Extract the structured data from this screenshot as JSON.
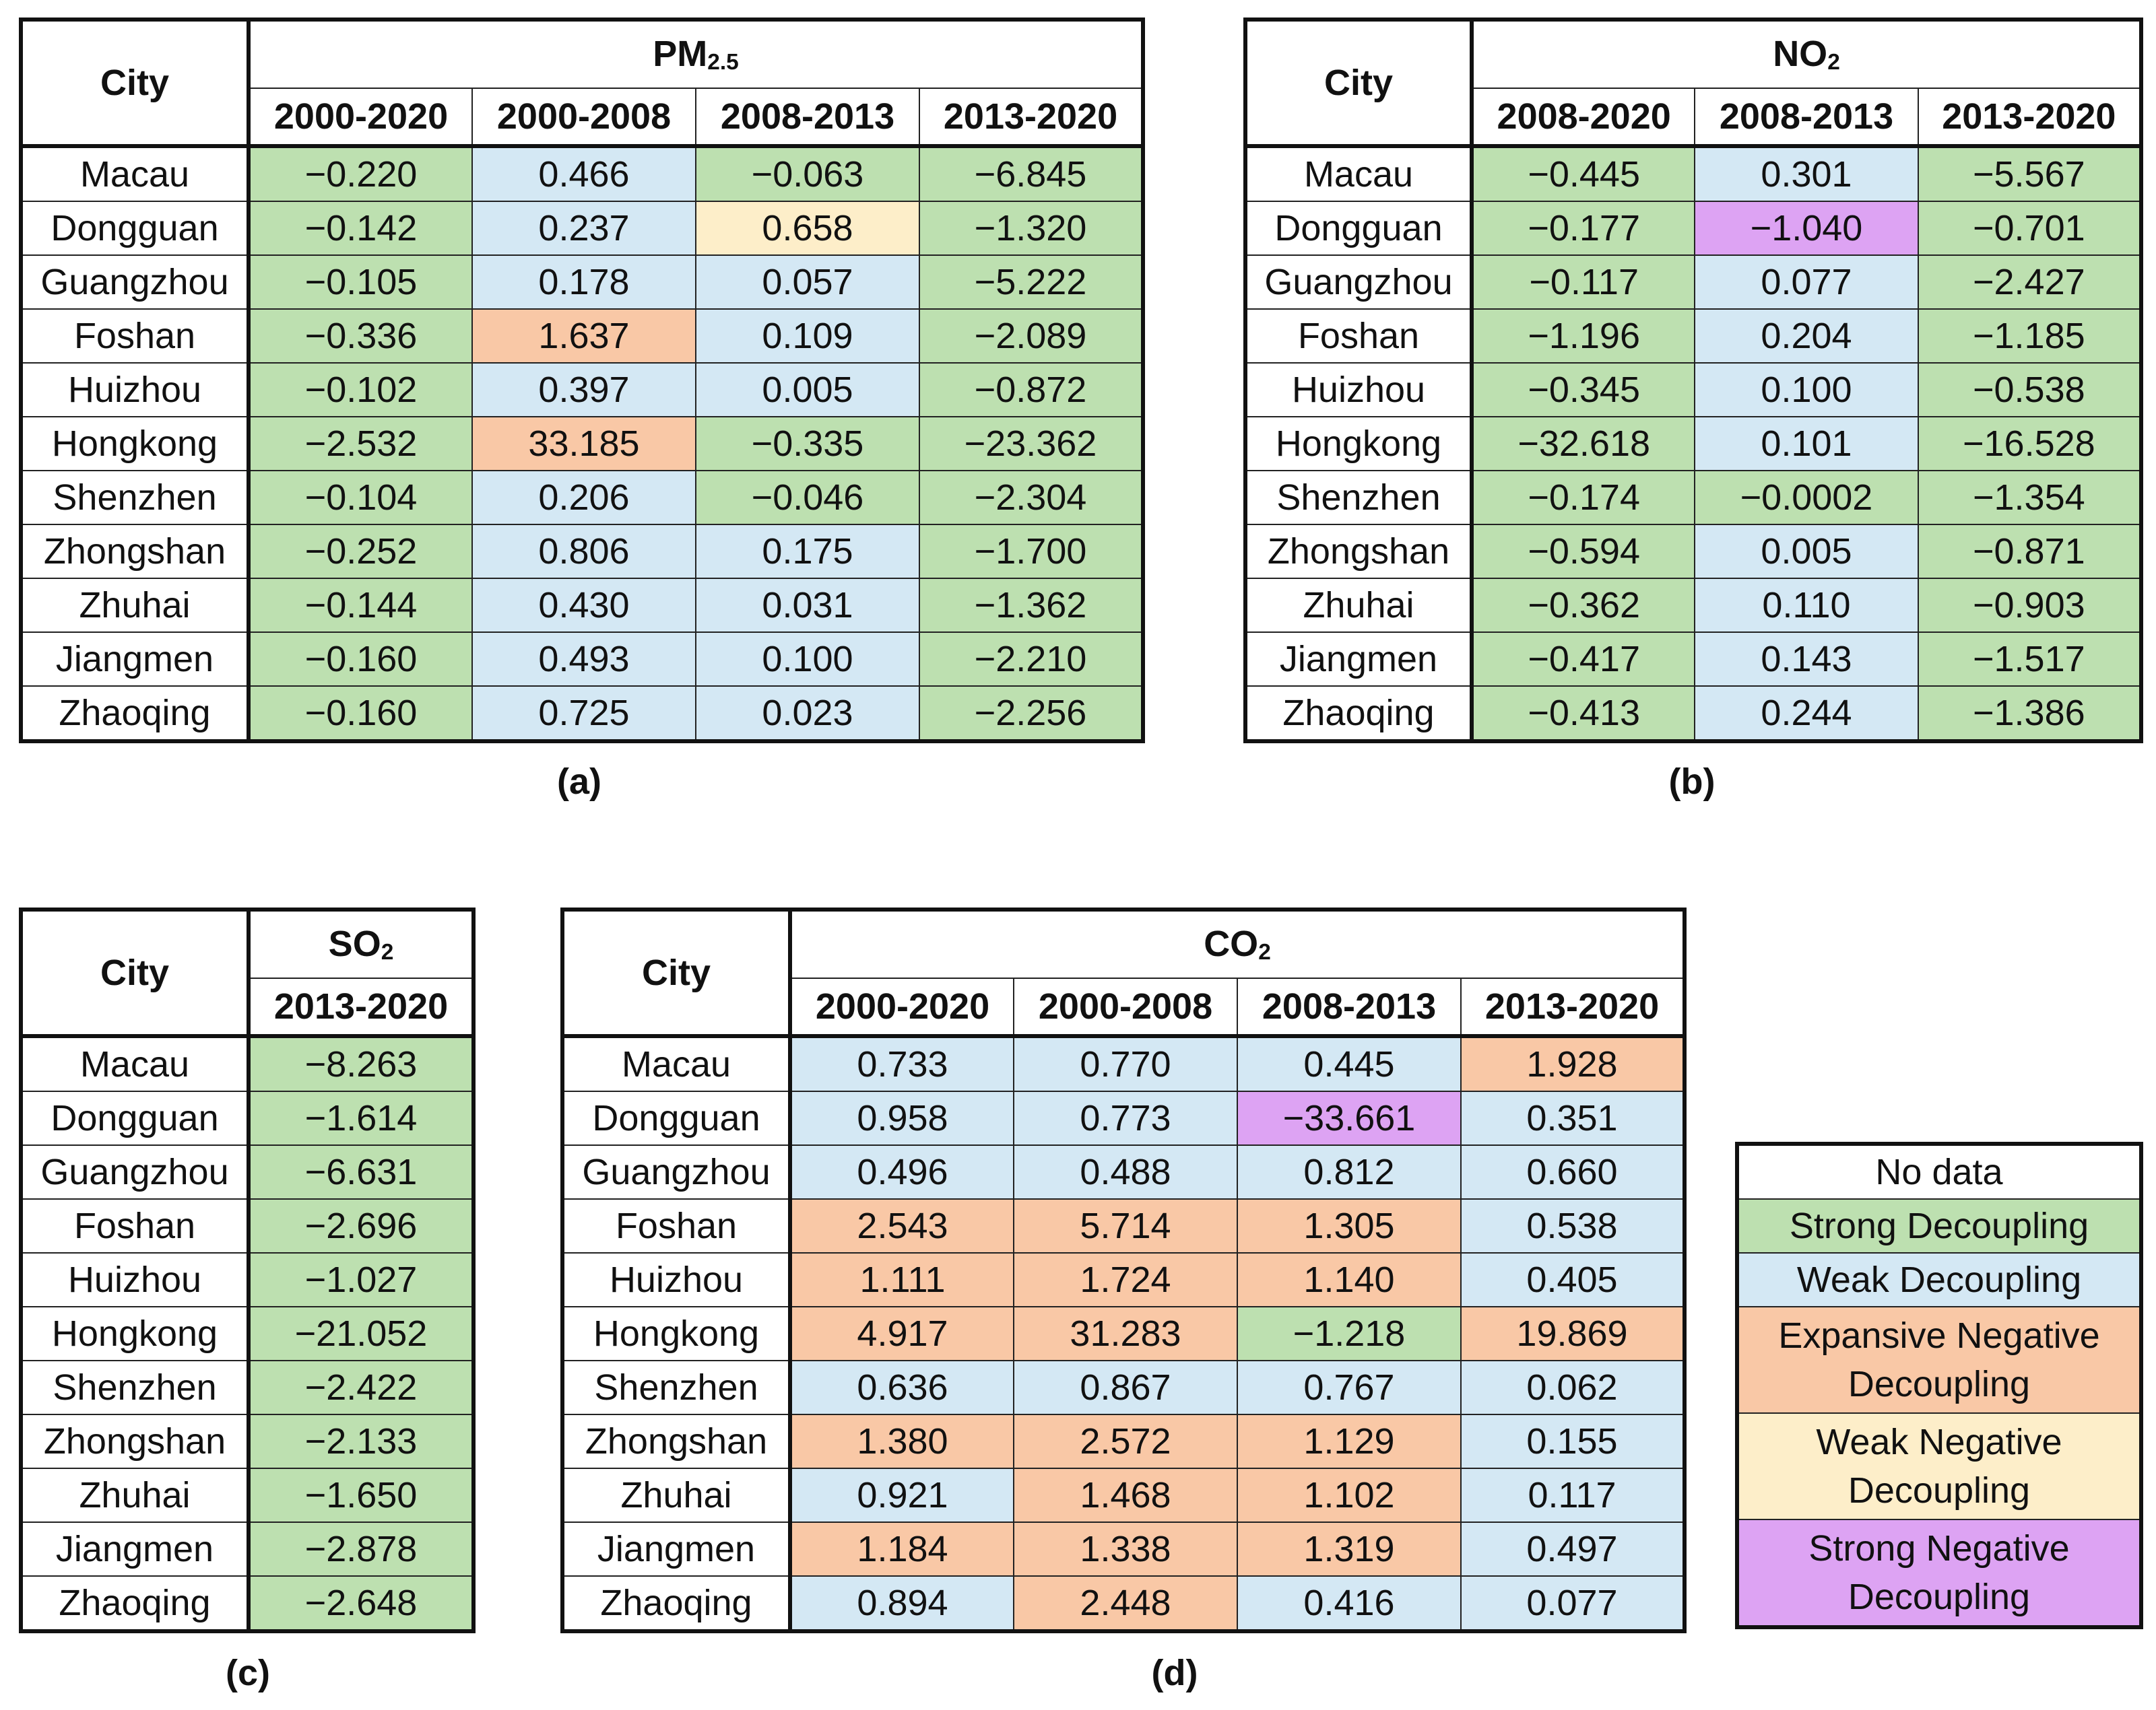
{
  "tables": {
    "a": {
      "caption": "(a)",
      "city_header": "City",
      "pollutant": {
        "base": "PM",
        "sub": "2.5"
      },
      "periods": [
        "2000-2020",
        "2000-2008",
        "2008-2013",
        "2013-2020"
      ],
      "rows": [
        {
          "city": "Macau",
          "cells": [
            {
              "value": "−0.220",
              "class": "SD"
            },
            {
              "value": "0.466",
              "class": "WD"
            },
            {
              "value": "−0.063",
              "class": "SD"
            },
            {
              "value": "−6.845",
              "class": "SD"
            }
          ]
        },
        {
          "city": "Dongguan",
          "cells": [
            {
              "value": "−0.142",
              "class": "SD"
            },
            {
              "value": "0.237",
              "class": "WD"
            },
            {
              "value": "0.658",
              "class": "WND"
            },
            {
              "value": "−1.320",
              "class": "SD"
            }
          ]
        },
        {
          "city": "Guangzhou",
          "cells": [
            {
              "value": "−0.105",
              "class": "SD"
            },
            {
              "value": "0.178",
              "class": "WD"
            },
            {
              "value": "0.057",
              "class": "WD"
            },
            {
              "value": "−5.222",
              "class": "SD"
            }
          ]
        },
        {
          "city": "Foshan",
          "cells": [
            {
              "value": "−0.336",
              "class": "SD"
            },
            {
              "value": "1.637",
              "class": "END"
            },
            {
              "value": "0.109",
              "class": "WD"
            },
            {
              "value": "−2.089",
              "class": "SD"
            }
          ]
        },
        {
          "city": "Huizhou",
          "cells": [
            {
              "value": "−0.102",
              "class": "SD"
            },
            {
              "value": "0.397",
              "class": "WD"
            },
            {
              "value": "0.005",
              "class": "WD"
            },
            {
              "value": "−0.872",
              "class": "SD"
            }
          ]
        },
        {
          "city": "Hongkong",
          "cells": [
            {
              "value": "−2.532",
              "class": "SD"
            },
            {
              "value": "33.185",
              "class": "END"
            },
            {
              "value": "−0.335",
              "class": "SD"
            },
            {
              "value": "−23.362",
              "class": "SD"
            }
          ]
        },
        {
          "city": "Shenzhen",
          "cells": [
            {
              "value": "−0.104",
              "class": "SD"
            },
            {
              "value": "0.206",
              "class": "WD"
            },
            {
              "value": "−0.046",
              "class": "SD"
            },
            {
              "value": "−2.304",
              "class": "SD"
            }
          ]
        },
        {
          "city": "Zhongshan",
          "cells": [
            {
              "value": "−0.252",
              "class": "SD"
            },
            {
              "value": "0.806",
              "class": "WD"
            },
            {
              "value": "0.175",
              "class": "WD"
            },
            {
              "value": "−1.700",
              "class": "SD"
            }
          ]
        },
        {
          "city": "Zhuhai",
          "cells": [
            {
              "value": "−0.144",
              "class": "SD"
            },
            {
              "value": "0.430",
              "class": "WD"
            },
            {
              "value": "0.031",
              "class": "WD"
            },
            {
              "value": "−1.362",
              "class": "SD"
            }
          ]
        },
        {
          "city": "Jiangmen",
          "cells": [
            {
              "value": "−0.160",
              "class": "SD"
            },
            {
              "value": "0.493",
              "class": "WD"
            },
            {
              "value": "0.100",
              "class": "WD"
            },
            {
              "value": "−2.210",
              "class": "SD"
            }
          ]
        },
        {
          "city": "Zhaoqing",
          "cells": [
            {
              "value": "−0.160",
              "class": "SD"
            },
            {
              "value": "0.725",
              "class": "WD"
            },
            {
              "value": "0.023",
              "class": "WD"
            },
            {
              "value": "−2.256",
              "class": "SD"
            }
          ]
        }
      ]
    },
    "b": {
      "caption": "(b)",
      "city_header": "City",
      "pollutant": {
        "base": "NO",
        "sub": "2"
      },
      "periods": [
        "2008-2020",
        "2008-2013",
        "2013-2020"
      ],
      "rows": [
        {
          "city": "Macau",
          "cells": [
            {
              "value": "−0.445",
              "class": "SD"
            },
            {
              "value": "0.301",
              "class": "WD"
            },
            {
              "value": "−5.567",
              "class": "SD"
            }
          ]
        },
        {
          "city": "Dongguan",
          "cells": [
            {
              "value": "−0.177",
              "class": "SD"
            },
            {
              "value": "−1.040",
              "class": "SND"
            },
            {
              "value": "−0.701",
              "class": "SD"
            }
          ]
        },
        {
          "city": "Guangzhou",
          "cells": [
            {
              "value": "−0.117",
              "class": "SD"
            },
            {
              "value": "0.077",
              "class": "WD"
            },
            {
              "value": "−2.427",
              "class": "SD"
            }
          ]
        },
        {
          "city": "Foshan",
          "cells": [
            {
              "value": "−1.196",
              "class": "SD"
            },
            {
              "value": "0.204",
              "class": "WD"
            },
            {
              "value": "−1.185",
              "class": "SD"
            }
          ]
        },
        {
          "city": "Huizhou",
          "cells": [
            {
              "value": "−0.345",
              "class": "SD"
            },
            {
              "value": "0.100",
              "class": "WD"
            },
            {
              "value": "−0.538",
              "class": "SD"
            }
          ]
        },
        {
          "city": "Hongkong",
          "cells": [
            {
              "value": "−32.618",
              "class": "SD"
            },
            {
              "value": "0.101",
              "class": "WD"
            },
            {
              "value": "−16.528",
              "class": "SD"
            }
          ]
        },
        {
          "city": "Shenzhen",
          "cells": [
            {
              "value": "−0.174",
              "class": "SD"
            },
            {
              "value": "−0.0002",
              "class": "SD"
            },
            {
              "value": "−1.354",
              "class": "SD"
            }
          ]
        },
        {
          "city": "Zhongshan",
          "cells": [
            {
              "value": "−0.594",
              "class": "SD"
            },
            {
              "value": "0.005",
              "class": "WD"
            },
            {
              "value": "−0.871",
              "class": "SD"
            }
          ]
        },
        {
          "city": "Zhuhai",
          "cells": [
            {
              "value": "−0.362",
              "class": "SD"
            },
            {
              "value": "0.110",
              "class": "WD"
            },
            {
              "value": "−0.903",
              "class": "SD"
            }
          ]
        },
        {
          "city": "Jiangmen",
          "cells": [
            {
              "value": "−0.417",
              "class": "SD"
            },
            {
              "value": "0.143",
              "class": "WD"
            },
            {
              "value": "−1.517",
              "class": "SD"
            }
          ]
        },
        {
          "city": "Zhaoqing",
          "cells": [
            {
              "value": "−0.413",
              "class": "SD"
            },
            {
              "value": "0.244",
              "class": "WD"
            },
            {
              "value": "−1.386",
              "class": "SD"
            }
          ]
        }
      ]
    },
    "c": {
      "caption": "(c)",
      "city_header": "City",
      "pollutant": {
        "base": "SO",
        "sub": "2"
      },
      "periods": [
        "2013-2020"
      ],
      "rows": [
        {
          "city": "Macau",
          "cells": [
            {
              "value": "−8.263",
              "class": "SD"
            }
          ]
        },
        {
          "city": "Dongguan",
          "cells": [
            {
              "value": "−1.614",
              "class": "SD"
            }
          ]
        },
        {
          "city": "Guangzhou",
          "cells": [
            {
              "value": "−6.631",
              "class": "SD"
            }
          ]
        },
        {
          "city": "Foshan",
          "cells": [
            {
              "value": "−2.696",
              "class": "SD"
            }
          ]
        },
        {
          "city": "Huizhou",
          "cells": [
            {
              "value": "−1.027",
              "class": "SD"
            }
          ]
        },
        {
          "city": "Hongkong",
          "cells": [
            {
              "value": "−21.052",
              "class": "SD"
            }
          ]
        },
        {
          "city": "Shenzhen",
          "cells": [
            {
              "value": "−2.422",
              "class": "SD"
            }
          ]
        },
        {
          "city": "Zhongshan",
          "cells": [
            {
              "value": "−2.133",
              "class": "SD"
            }
          ]
        },
        {
          "city": "Zhuhai",
          "cells": [
            {
              "value": "−1.650",
              "class": "SD"
            }
          ]
        },
        {
          "city": "Jiangmen",
          "cells": [
            {
              "value": "−2.878",
              "class": "SD"
            }
          ]
        },
        {
          "city": "Zhaoqing",
          "cells": [
            {
              "value": "−2.648",
              "class": "SD"
            }
          ]
        }
      ]
    },
    "d": {
      "caption": "(d)",
      "city_header": "City",
      "pollutant": {
        "base": "CO",
        "sub": "2"
      },
      "periods": [
        "2000-2020",
        "2000-2008",
        "2008-2013",
        "2013-2020"
      ],
      "rows": [
        {
          "city": "Macau",
          "cells": [
            {
              "value": "0.733",
              "class": "WD"
            },
            {
              "value": "0.770",
              "class": "WD"
            },
            {
              "value": "0.445",
              "class": "WD"
            },
            {
              "value": "1.928",
              "class": "END"
            }
          ]
        },
        {
          "city": "Dongguan",
          "cells": [
            {
              "value": "0.958",
              "class": "WD"
            },
            {
              "value": "0.773",
              "class": "WD"
            },
            {
              "value": "−33.661",
              "class": "SND"
            },
            {
              "value": "0.351",
              "class": "WD"
            }
          ]
        },
        {
          "city": "Guangzhou",
          "cells": [
            {
              "value": "0.496",
              "class": "WD"
            },
            {
              "value": "0.488",
              "class": "WD"
            },
            {
              "value": "0.812",
              "class": "WD"
            },
            {
              "value": "0.660",
              "class": "WD"
            }
          ]
        },
        {
          "city": "Foshan",
          "cells": [
            {
              "value": "2.543",
              "class": "END"
            },
            {
              "value": "5.714",
              "class": "END"
            },
            {
              "value": "1.305",
              "class": "END"
            },
            {
              "value": "0.538",
              "class": "WD"
            }
          ]
        },
        {
          "city": "Huizhou",
          "cells": [
            {
              "value": "1.111",
              "class": "END"
            },
            {
              "value": "1.724",
              "class": "END"
            },
            {
              "value": "1.140",
              "class": "END"
            },
            {
              "value": "0.405",
              "class": "WD"
            }
          ]
        },
        {
          "city": "Hongkong",
          "cells": [
            {
              "value": "4.917",
              "class": "END"
            },
            {
              "value": "31.283",
              "class": "END"
            },
            {
              "value": "−1.218",
              "class": "SD"
            },
            {
              "value": "19.869",
              "class": "END"
            }
          ]
        },
        {
          "city": "Shenzhen",
          "cells": [
            {
              "value": "0.636",
              "class": "WD"
            },
            {
              "value": "0.867",
              "class": "WD"
            },
            {
              "value": "0.767",
              "class": "WD"
            },
            {
              "value": "0.062",
              "class": "WD"
            }
          ]
        },
        {
          "city": "Zhongshan",
          "cells": [
            {
              "value": "1.380",
              "class": "END"
            },
            {
              "value": "2.572",
              "class": "END"
            },
            {
              "value": "1.129",
              "class": "END"
            },
            {
              "value": "0.155",
              "class": "WD"
            }
          ]
        },
        {
          "city": "Zhuhai",
          "cells": [
            {
              "value": "0.921",
              "class": "WD"
            },
            {
              "value": "1.468",
              "class": "END"
            },
            {
              "value": "1.102",
              "class": "END"
            },
            {
              "value": "0.117",
              "class": "WD"
            }
          ]
        },
        {
          "city": "Jiangmen",
          "cells": [
            {
              "value": "1.184",
              "class": "END"
            },
            {
              "value": "1.338",
              "class": "END"
            },
            {
              "value": "1.319",
              "class": "END"
            },
            {
              "value": "0.497",
              "class": "WD"
            }
          ]
        },
        {
          "city": "Zhaoqing",
          "cells": [
            {
              "value": "0.894",
              "class": "WD"
            },
            {
              "value": "2.448",
              "class": "END"
            },
            {
              "value": "0.416",
              "class": "WD"
            },
            {
              "value": "0.077",
              "class": "WD"
            }
          ]
        }
      ]
    }
  },
  "legend": [
    {
      "lines": [
        "No data"
      ],
      "class": "ND"
    },
    {
      "lines": [
        "Strong Decoupling"
      ],
      "class": "SD"
    },
    {
      "lines": [
        "Weak Decoupling"
      ],
      "class": "WD"
    },
    {
      "lines": [
        "Expansive Negative",
        "Decoupling"
      ],
      "class": "END"
    },
    {
      "lines": [
        "Weak Negative",
        "Decoupling"
      ],
      "class": "WND"
    },
    {
      "lines": [
        "Strong Negative",
        "Decoupling"
      ],
      "class": "SND"
    }
  ],
  "colors": {
    "SD": "#bde0b0",
    "WD": "#d4e8f4",
    "END": "#f9c8a6",
    "WND": "#fdeec9",
    "SND": "#dda3f3",
    "ND": "#ffffff"
  }
}
